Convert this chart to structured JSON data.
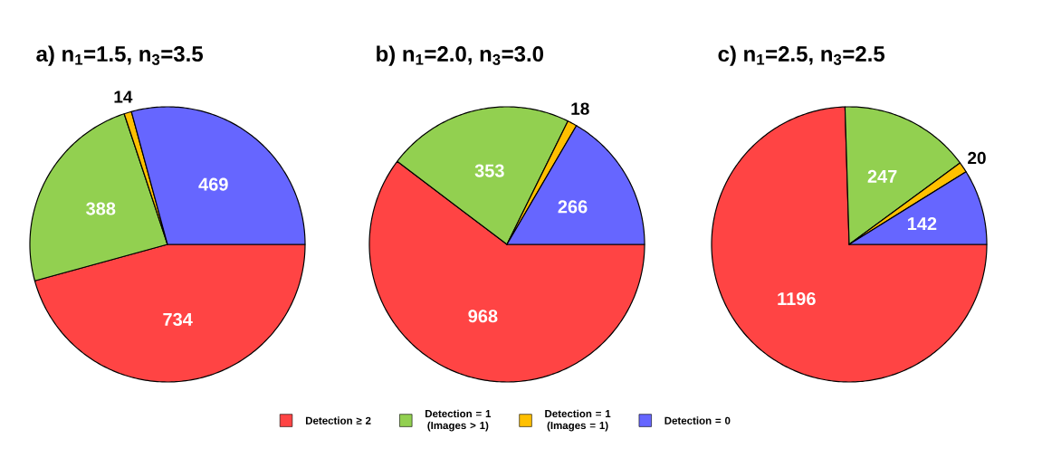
{
  "chart_data": [
    {
      "type": "pie",
      "title": "a) n$_{1}$=1.5, n$_{3}$=3.5",
      "categories": [
        null,
        null,
        null,
        null
      ],
      "values": [
        734,
        388,
        14,
        469
      ],
      "colors": [
        "#ff4444",
        "#92d050",
        "#ffc000",
        "#6666ff"
      ],
      "data_labels": true
    },
    {
      "type": "pie",
      "title": "b) n$_{1}$=2.0, n$_{3}$=3.0",
      "categories": [
        "Detection ≥ 2",
        "Detection = 1 (Images > 1)",
        "Detection = 1 (Images = 1)",
        "Detection = 0"
      ],
      "values": [
        968,
        353,
        18,
        266
      ],
      "colors": [
        "#ff4444",
        "#92d050",
        "#ffc000",
        "#6666ff"
      ],
      "data_labels": true,
      "legend": "bottom"
    },
    {
      "type": "pie",
      "title": "c) n$_{1}$=2.5, n$_{3}$=2.5",
      "categories": [
        null,
        null,
        null,
        null
      ],
      "values": [
        1196,
        247,
        20,
        142
      ],
      "colors": [
        "#ff4444",
        "#92d050",
        "#ffc000",
        "#6666ff"
      ],
      "data_labels": true
    }
  ]
}
